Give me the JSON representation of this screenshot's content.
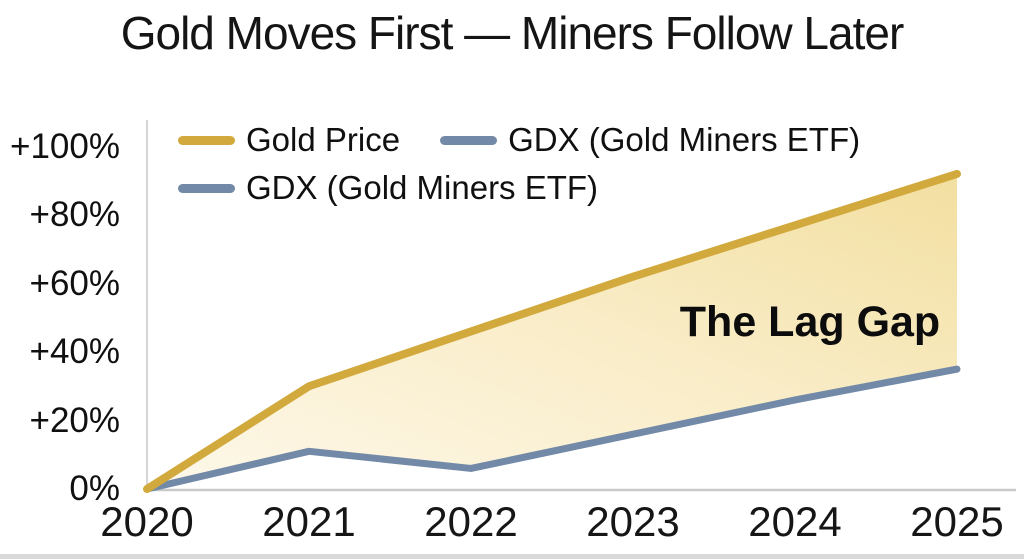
{
  "title": "Gold Moves First — Miners Follow Later",
  "colors": {
    "gold": "#d2a93c",
    "gdx_blue": "#7289a7",
    "area_light": "#fdf8ea",
    "area_mid": "#f9ecc6",
    "area_deep": "#f2dfa0",
    "axis": "#d6d6d6",
    "text": "#111111"
  },
  "legend": {
    "items": [
      {
        "label": "Gold Price",
        "color": "gold"
      },
      {
        "label": "GDX (Gold Miners ETF)",
        "color": "gdx_blue"
      },
      {
        "label": "GDX (Gold Miners ETF)",
        "color": "gdx_blue"
      }
    ]
  },
  "annotation": "The Lag Gap",
  "chart_data": {
    "type": "area",
    "title": "Gold Moves First — Miners Follow Later",
    "x": [
      2020,
      2021,
      2022,
      2023,
      2024,
      2025
    ],
    "series": [
      {
        "name": "Gold Price",
        "color": "gold",
        "values": [
          0,
          30,
          46,
          62,
          77,
          92
        ]
      },
      {
        "name": "GDX (Gold Miners ETF)",
        "color": "gdx_blue",
        "values": [
          0,
          11,
          6,
          16,
          26,
          35
        ]
      }
    ],
    "ylim": [
      0,
      100
    ],
    "yticks": [
      {
        "value": 100,
        "label": "+100%"
      },
      {
        "value": 80,
        "label": "+80%"
      },
      {
        "value": 60,
        "label": "+60%"
      },
      {
        "value": 40,
        "label": "+40%"
      },
      {
        "value": 20,
        "label": "+20%"
      },
      {
        "value": 0,
        "label": "0%"
      }
    ],
    "grid": false,
    "legend_position": "top-left",
    "area_between_series": true,
    "area_label": "The Lag Gap"
  }
}
